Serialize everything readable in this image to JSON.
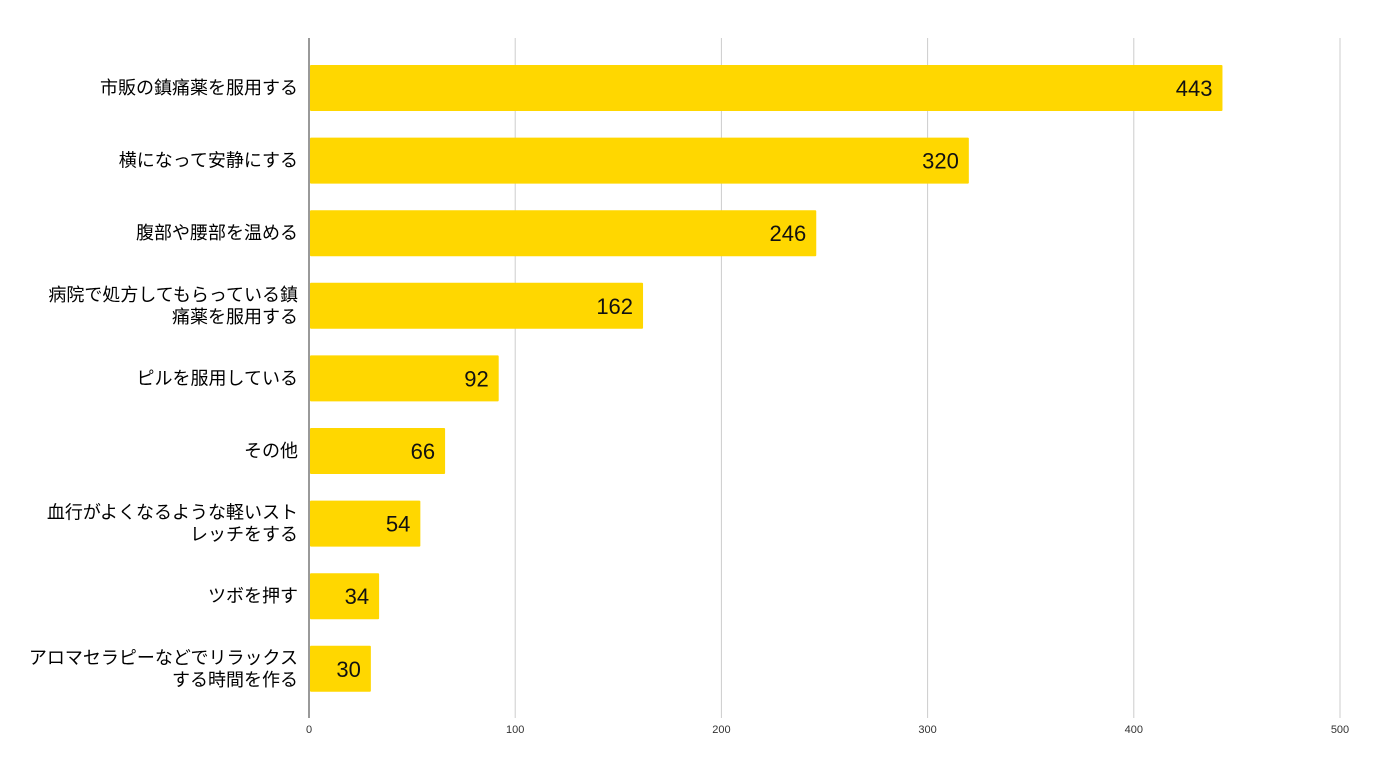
{
  "chart_data": {
    "type": "bar",
    "orientation": "horizontal",
    "title": "",
    "xlabel": "",
    "ylabel": "",
    "xlim": [
      0,
      500
    ],
    "x_ticks": [
      0,
      100,
      200,
      300,
      400,
      500
    ],
    "grid": true,
    "legend": "none",
    "bar_color": "#FFD700",
    "categories": [
      [
        "市販の鎮痛薬を服用する"
      ],
      [
        "横になって安静にする"
      ],
      [
        "腹部や腰部を温める"
      ],
      [
        "病院で処方してもらっている鎮",
        "痛薬を服用する"
      ],
      [
        "ピルを服用している"
      ],
      [
        "その他"
      ],
      [
        "血行がよくなるような軽いスト",
        "レッチをする"
      ],
      [
        "ツボを押す"
      ],
      [
        "アロマセラピーなどでリラックス",
        "する時間を作る"
      ]
    ],
    "values": [
      443,
      320,
      246,
      162,
      92,
      66,
      54,
      34,
      30
    ]
  }
}
